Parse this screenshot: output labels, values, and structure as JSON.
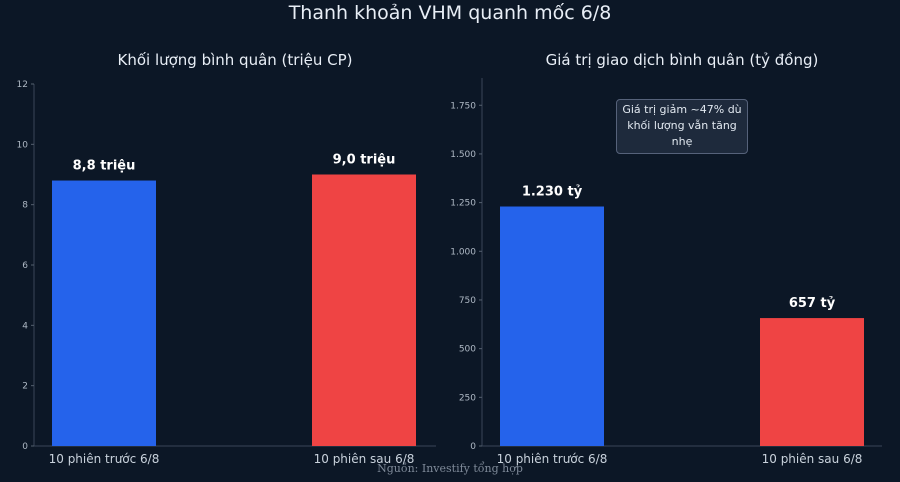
{
  "title": "Thanh khoản VHM quanh mốc 6/8",
  "source": "Nguồn: Investify tổng hợp",
  "colors": {
    "before": "#2563eb",
    "after": "#ef4444",
    "background": "#0c1726"
  },
  "chart_data": [
    {
      "type": "bar",
      "title": "Khối lượng bình quân (triệu CP)",
      "categories": [
        "10 phiên trước 6/8",
        "10 phiên sau 6/8"
      ],
      "values": [
        8.8,
        9.0
      ],
      "data_labels": [
        "8,8 triệu",
        "9,0 triệu"
      ],
      "ylim": [
        0,
        12
      ],
      "yticks": [
        0,
        2,
        4,
        6,
        8,
        10,
        12
      ],
      "ytick_labels": [
        "0",
        "2",
        "4",
        "6",
        "8",
        "10",
        "12"
      ],
      "grid": false
    },
    {
      "type": "bar",
      "title": "Giá trị giao dịch bình quân (tỷ đồng)",
      "categories": [
        "10 phiên trước 6/8",
        "10 phiên sau 6/8"
      ],
      "values": [
        1230,
        657
      ],
      "data_labels": [
        "1.230 tỷ",
        "657 tỷ"
      ],
      "ylim": [
        0,
        1890
      ],
      "yticks": [
        0,
        250,
        500,
        750,
        1000,
        1250,
        1500,
        1750
      ],
      "ytick_labels": [
        "0",
        "250",
        "500",
        "750",
        "1.000",
        "1.250",
        "1.500",
        "1.750"
      ],
      "annotation": [
        "Giá trị giảm ~47% dù",
        "khối lượng vẫn tăng nhẹ"
      ],
      "grid": false
    }
  ]
}
